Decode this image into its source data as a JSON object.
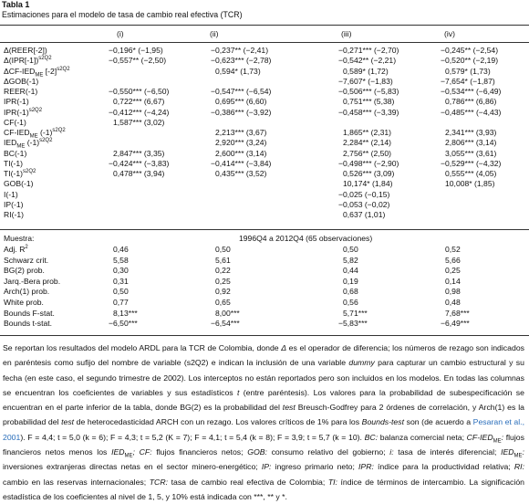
{
  "header": {
    "title": "Tabla 1",
    "subtitle": "Estimaciones para el modelo de tasa de cambio real efectiva (TCR)"
  },
  "table": {
    "columns": [
      "(i)",
      "(ii)",
      "(iii)",
      "(iv)"
    ],
    "rows": [
      {
        "label": [
          {
            "t": "Δ(REER[-2])"
          }
        ],
        "cells": [
          "−0,196* (−1,95)",
          "−0,237** (−2,41)",
          "−0,271*** (−2,70)",
          "−0,245** (−2,54)"
        ]
      },
      {
        "label": [
          {
            "t": "Δ(IPR[-1])"
          },
          {
            "sup": "s2Q2"
          }
        ],
        "cells": [
          "−0,557** (−2,50)",
          "−0,623*** (−2,78)",
          "−0,542** (−2,21)",
          "−0,520** (−2,19)"
        ]
      },
      {
        "label": [
          {
            "t": "ΔCF-IED"
          },
          {
            "sub": "ME"
          },
          {
            "t": " [-2]"
          },
          {
            "sup": "s2Q2"
          }
        ],
        "cells": [
          null,
          "0,594* (1,73)",
          "0,589* (1,72)",
          "0,579* (1,73)"
        ]
      },
      {
        "label": [
          {
            "t": "ΔGOB(-1)"
          }
        ],
        "cells": [
          null,
          null,
          "−7,607* (−1,83)",
          "−7,654* (−1,87)"
        ]
      },
      {
        "label": [
          {
            "t": "REER(-1)"
          }
        ],
        "cells": [
          "−0,550*** (−6,50)",
          "−0,547*** (−6,54)",
          "−0,506*** (−5,83)",
          "−0,534*** (−6,49)"
        ]
      },
      {
        "label": [
          {
            "t": "IPR(-1)"
          }
        ],
        "cells": [
          "0,722*** (6,67)",
          "0,695*** (6,60)",
          "0,751*** (5,38)",
          "0,786*** (6,86)"
        ]
      },
      {
        "label": [
          {
            "t": "IPR(-1)"
          },
          {
            "sup": "s2Q2"
          }
        ],
        "cells": [
          "−0,412*** (−4,24)",
          "−0,386*** (−3,92)",
          "−0,458*** (−3,39)",
          "−0,485*** (−4,43)"
        ]
      },
      {
        "label": [
          {
            "t": "CF(-1)"
          }
        ],
        "cells": [
          "1,587*** (3,02)",
          null,
          null,
          null
        ]
      },
      {
        "label": [
          {
            "t": "CF-IED"
          },
          {
            "sub": "ME"
          },
          {
            "t": " (-1)"
          },
          {
            "sup": "s2Q2"
          }
        ],
        "cells": [
          null,
          "2,213*** (3,67)",
          "1,865** (2,31)",
          "2,341*** (3,93)"
        ]
      },
      {
        "label": [
          {
            "t": "IED"
          },
          {
            "sub": "ME"
          },
          {
            "t": " (-1)"
          },
          {
            "sup": "s2Q2"
          }
        ],
        "cells": [
          null,
          "2,920*** (3,24)",
          "2,284** (2,14)",
          "2,806*** (3,14)"
        ]
      },
      {
        "label": [
          {
            "t": "BC(-1)"
          }
        ],
        "cells": [
          "2,847*** (3,35)",
          "2,600*** (3,14)",
          "2,756** (2,50)",
          "3,055*** (3,61)"
        ]
      },
      {
        "label": [
          {
            "t": "TI(-1)"
          }
        ],
        "cells": [
          "−0,424*** (−3,83)",
          "−0,414*** (−3,84)",
          "−0,498*** (−2,90)",
          "−0,529*** (−4,32)"
        ]
      },
      {
        "label": [
          {
            "t": "TI(-1)"
          },
          {
            "sup": "s2Q2"
          }
        ],
        "cells": [
          "0,478*** (3,94)",
          "0,435*** (3,52)",
          "0,526*** (3,09)",
          "0,555*** (4,05)"
        ]
      },
      {
        "label": [
          {
            "t": "GOB(-1)"
          }
        ],
        "cells": [
          null,
          null,
          "10,174* (1,84)",
          "10,008* (1,85)"
        ]
      },
      {
        "label": [
          {
            "t": "I(-1)"
          }
        ],
        "cells": [
          null,
          null,
          "−0,025 (−0,15)",
          null
        ]
      },
      {
        "label": [
          {
            "t": "IP(-1)"
          }
        ],
        "cells": [
          null,
          null,
          "−0,053 (−0,02)",
          null
        ]
      },
      {
        "label": [
          {
            "t": "RI(-1)"
          }
        ],
        "cells": [
          null,
          null,
          "0,637 (1,01)",
          null
        ]
      }
    ],
    "sample": {
      "label": "Muestra:",
      "value": "1996Q4 a 2012Q4 (65 observaciones)"
    },
    "stats": [
      {
        "label": [
          {
            "t": "Adj. R"
          },
          {
            "sup": "2"
          }
        ],
        "cells": [
          "0,46",
          "0,50",
          "0,50",
          "0,52"
        ]
      },
      {
        "label": [
          {
            "t": "Schwarz crit."
          }
        ],
        "cells": [
          "5,58",
          "5,61",
          "5,82",
          "5,66"
        ]
      },
      {
        "label": [
          {
            "t": "BG(2) prob."
          }
        ],
        "cells": [
          "0,30",
          "0,22",
          "0,44",
          "0,25"
        ]
      },
      {
        "label": [
          {
            "t": "Jarq.-Bera prob."
          }
        ],
        "cells": [
          "0,31",
          "0,25",
          "0,19",
          "0,14"
        ]
      },
      {
        "label": [
          {
            "t": "Arch(1) prob."
          }
        ],
        "cells": [
          "0,50",
          "0,92",
          "0,68",
          "0,98"
        ]
      },
      {
        "label": [
          {
            "t": "White prob."
          }
        ],
        "cells": [
          "0,77",
          "0,65",
          "0,56",
          "0,48"
        ]
      },
      {
        "label": [
          {
            "t": "Bounds F-stat."
          }
        ],
        "cells": [
          "8,13***",
          "8,00***",
          "5,71***",
          "7,68***"
        ]
      },
      {
        "label": [
          {
            "t": "Bounds t-stat."
          }
        ],
        "cells": [
          "−6,50***",
          "−6,54***",
          "−5,83***",
          "−6,49***"
        ]
      }
    ]
  },
  "note": [
    {
      "t": "Se reportan los resultados del modelo ARDL para la TCR de Colombia, donde "
    },
    {
      "i": "Δ"
    },
    {
      "t": " es el operador de diferencia; los números de rezago son indicados en paréntesis como sufijo del nombre de variable (s2Q2) e indican la inclusión de una variable "
    },
    {
      "i": "dummy"
    },
    {
      "t": " para capturar un cambio estructural y su fecha (en este caso, el segundo trimestre de 2002). Los interceptos no están reportados pero son incluidos en los modelos. En todas las columnas se encuentran los coeficientes de variables y sus estadísticos "
    },
    {
      "i": "t"
    },
    {
      "t": " (entre paréntesis). Los valores para la probabilidad de subespecificación se encuentran en el parte inferior de la tabla, donde BG(2) es la probabilidad del "
    },
    {
      "i": "test"
    },
    {
      "t": " Breusch-Godfrey para 2 órdenes de correlación, y Arch(1) es la probabilidad del "
    },
    {
      "i": "test"
    },
    {
      "t": " de heterocedasticidad ARCH con un rezago. Los valores críticos de 1% para los "
    },
    {
      "i": "Bounds-test"
    },
    {
      "t": " son (de acuerdo a "
    },
    {
      "link": "Pesaran et al., 2001"
    },
    {
      "t": "). F = 4,4; t = 5,0 (k = 6); F = 4,3; t = 5,2 (K = 7); F = 4,1; t = 5,4 (k = 8); F = 3,9; t = 5,7 (k = 10). "
    },
    {
      "i": "BC:"
    },
    {
      "t": " balanza comercial neta; "
    },
    {
      "i": "CF-IED"
    },
    {
      "sub": "ME"
    },
    {
      "i": ":"
    },
    {
      "t": " flujos financieros netos menos los "
    },
    {
      "i": "IED"
    },
    {
      "sub": "ME"
    },
    {
      "i": ";"
    },
    {
      "t": " "
    },
    {
      "i": "CF:"
    },
    {
      "t": " flujos financieros netos; "
    },
    {
      "i": "GOB:"
    },
    {
      "t": " consumo relativo del gobierno; "
    },
    {
      "i": "i:"
    },
    {
      "t": " tasa de interés diferencial; "
    },
    {
      "i": "IED"
    },
    {
      "sub": "ME"
    },
    {
      "i": ":"
    },
    {
      "t": " inversiones extranjeras directas netas en el sector minero-energético; "
    },
    {
      "i": "IP:"
    },
    {
      "t": " ingreso primario neto; "
    },
    {
      "i": "IPR:"
    },
    {
      "t": " índice para la productividad relativa; "
    },
    {
      "i": "RI:"
    },
    {
      "t": " cambio en las reservas internacionales; "
    },
    {
      "i": "TCR:"
    },
    {
      "t": " tasa de cambio real efectiva de Colombia; "
    },
    {
      "i": "TI:"
    },
    {
      "t": " índice de términos de intercambio. La significación estadística de los coeficientes al nivel de 1, 5, y 10% está indicada con ***, ** y *."
    }
  ]
}
